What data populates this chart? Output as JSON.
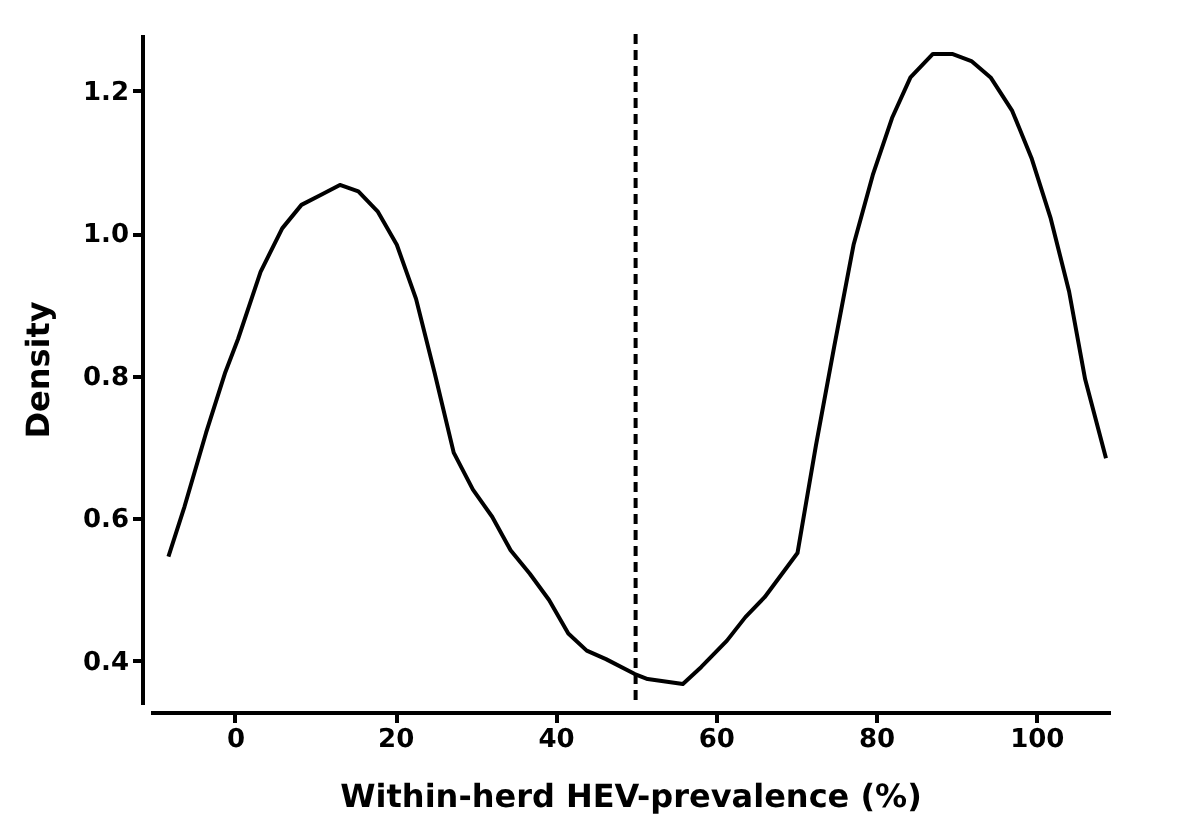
{
  "chart_data": {
    "type": "line",
    "xlabel": "Within-herd HEV-prevalence (%)",
    "ylabel": "Density",
    "x": [
      -8.3,
      -6.3,
      -3.6,
      -1.2,
      0.4,
      3.2,
      5.9,
      8.3,
      10.7,
      13.1,
      15.4,
      17.8,
      20.2,
      22.6,
      24.9,
      27.3,
      29.7,
      32.1,
      34.4,
      36.8,
      39.2,
      41.6,
      43.9,
      46.3,
      49.9,
      51.5,
      55.9,
      58.2,
      61.4,
      63.7,
      66.1,
      70.2,
      72.5,
      74.8,
      77.2,
      79.6,
      82.0,
      84.3,
      87.1,
      89.5,
      91.9,
      94.3,
      97.0,
      99.4,
      101.8,
      104.1,
      106.1,
      108.7
    ],
    "series": [
      {
        "color": "#000000",
        "values": [
          0.546,
          0.616,
          0.72,
          0.805,
          0.852,
          0.946,
          1.007,
          1.04,
          1.054,
          1.068,
          1.059,
          1.031,
          0.984,
          0.908,
          0.805,
          0.692,
          0.64,
          0.602,
          0.555,
          0.522,
          0.485,
          0.438,
          0.414,
          0.402,
          0.381,
          0.374,
          0.367,
          0.391,
          0.428,
          0.461,
          0.489,
          0.551,
          0.702,
          0.842,
          0.984,
          1.082,
          1.162,
          1.219,
          1.252,
          1.252,
          1.242,
          1.219,
          1.172,
          1.106,
          1.021,
          0.918,
          0.795,
          0.684
        ]
      }
    ],
    "xlim": [
      -10.6,
      109.2
    ],
    "xticks": [
      0,
      20,
      40,
      60,
      80,
      100
    ],
    "ylim": [
      0.339,
      1.28
    ],
    "yticks": [
      {
        "value": 0.4,
        "label": "0.4"
      },
      {
        "value": 0.6,
        "label": "0.6"
      },
      {
        "value": 0.8,
        "label": "0.8"
      },
      {
        "value": 1.0,
        "label": "1.0"
      },
      {
        "value": 1.2,
        "label": "1.2"
      }
    ],
    "ref_lines": [
      {
        "axis": "x",
        "value": 50,
        "color": "#000000",
        "line_style": "dashed"
      }
    ],
    "grid": false,
    "marker": "none",
    "line_style": "solid"
  }
}
